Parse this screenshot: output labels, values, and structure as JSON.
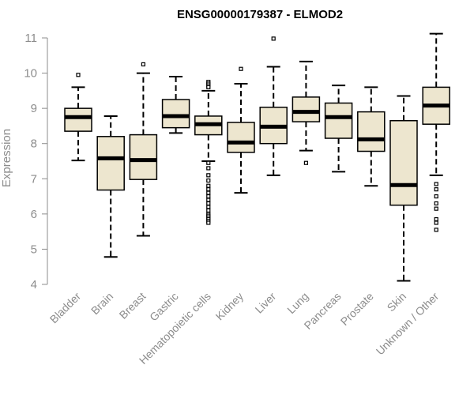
{
  "chart_data": {
    "type": "boxplot",
    "title": "ENSG00000179387 - ELMOD2",
    "xlabel": "",
    "ylabel": "Expression",
    "ylim": [
      4,
      11
    ],
    "yticks": [
      4,
      5,
      6,
      7,
      8,
      9,
      10,
      11
    ],
    "box_color": "#ede6cf",
    "categories": [
      "Bladder",
      "Brain",
      "Breast",
      "Gastric",
      "Hematopoietic cells",
      "Kidney",
      "Liver",
      "Lung",
      "Pancreas",
      "Prostate",
      "Skin",
      "Unknown / Other"
    ],
    "boxes": [
      {
        "whisker_low": 7.52,
        "q1": 8.35,
        "median": 8.75,
        "q3": 9.0,
        "whisker_high": 9.6,
        "outliers": [
          9.95
        ]
      },
      {
        "whisker_low": 4.78,
        "q1": 6.68,
        "median": 7.58,
        "q3": 8.2,
        "whisker_high": 8.78,
        "outliers": []
      },
      {
        "whisker_low": 5.38,
        "q1": 6.98,
        "median": 7.53,
        "q3": 8.25,
        "whisker_high": 10.0,
        "outliers": [
          10.25
        ]
      },
      {
        "whisker_low": 8.3,
        "q1": 8.45,
        "median": 8.78,
        "q3": 9.25,
        "whisker_high": 9.9,
        "outliers": []
      },
      {
        "whisker_low": 7.5,
        "q1": 8.25,
        "median": 8.55,
        "q3": 8.78,
        "whisker_high": 9.5,
        "outliers": [
          9.75,
          9.7,
          9.65,
          9.6,
          7.45,
          7.3,
          7.1,
          6.95,
          6.8,
          6.7,
          6.6,
          6.5,
          6.4,
          6.3,
          6.2,
          6.1,
          6.0,
          5.95,
          5.9,
          5.85,
          5.8,
          5.75
        ]
      },
      {
        "whisker_low": 6.6,
        "q1": 7.75,
        "median": 8.03,
        "q3": 8.6,
        "whisker_high": 9.7,
        "outliers": [
          10.12
        ]
      },
      {
        "whisker_low": 7.1,
        "q1": 8.0,
        "median": 8.48,
        "q3": 9.03,
        "whisker_high": 10.18,
        "outliers": [
          10.98
        ]
      },
      {
        "whisker_low": 7.8,
        "q1": 8.62,
        "median": 8.9,
        "q3": 9.32,
        "whisker_high": 10.33,
        "outliers": [
          7.45
        ]
      },
      {
        "whisker_low": 7.2,
        "q1": 8.15,
        "median": 8.75,
        "q3": 9.15,
        "whisker_high": 9.65,
        "outliers": []
      },
      {
        "whisker_low": 6.8,
        "q1": 7.78,
        "median": 8.12,
        "q3": 8.9,
        "whisker_high": 9.6,
        "outliers": []
      },
      {
        "whisker_low": 4.1,
        "q1": 6.25,
        "median": 6.82,
        "q3": 8.65,
        "whisker_high": 9.35,
        "outliers": []
      },
      {
        "whisker_low": 7.1,
        "q1": 8.55,
        "median": 9.08,
        "q3": 9.6,
        "whisker_high": 11.12,
        "outliers": [
          6.85,
          6.7,
          6.5,
          6.3,
          6.15,
          5.85,
          5.75,
          5.55
        ]
      }
    ]
  }
}
